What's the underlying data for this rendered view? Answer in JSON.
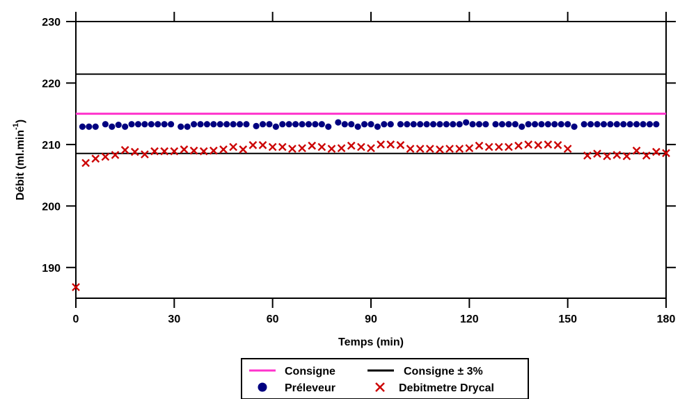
{
  "chart_data": {
    "type": "scatter",
    "xlabel": "Temps (min)",
    "ylabel_main": "Débit (ml.min",
    "ylabel_sup": "-1",
    "ylabel_end": ")",
    "xlim": [
      0,
      180
    ],
    "ylim": [
      185,
      230
    ],
    "xticks": [
      0,
      30,
      60,
      90,
      120,
      150,
      180
    ],
    "yticks": [
      190,
      200,
      210,
      220,
      230
    ],
    "reference_lines": [
      {
        "name": "Consigne",
        "y": 215,
        "color": "#ff33cc"
      },
      {
        "name": "Consigne ± 3%",
        "y_upper": 221.45,
        "y_lower": 208.55,
        "color": "#000000"
      }
    ],
    "series": [
      {
        "name": "Préleveur",
        "marker": "circle",
        "color": "#000080",
        "x": [
          2,
          4,
          6,
          9,
          11,
          13,
          15,
          17,
          19,
          21,
          23,
          25,
          27,
          29,
          32,
          34,
          36,
          38,
          40,
          42,
          44,
          46,
          48,
          50,
          52,
          55,
          57,
          59,
          61,
          63,
          65,
          67,
          69,
          71,
          73,
          75,
          77,
          80,
          82,
          84,
          86,
          88,
          90,
          92,
          94,
          96,
          99,
          101,
          103,
          105,
          107,
          109,
          111,
          113,
          115,
          117,
          119,
          121,
          123,
          125,
          128,
          130,
          132,
          134,
          136,
          138,
          140,
          142,
          144,
          146,
          148,
          150,
          152,
          155,
          157,
          159,
          161,
          163,
          165,
          167,
          169,
          171,
          173,
          175,
          177
        ],
        "y": [
          212.9,
          212.9,
          212.9,
          213.3,
          212.9,
          213.2,
          212.9,
          213.3,
          213.3,
          213.3,
          213.3,
          213.3,
          213.3,
          213.3,
          212.9,
          212.9,
          213.3,
          213.3,
          213.3,
          213.3,
          213.3,
          213.3,
          213.3,
          213.3,
          213.3,
          213.0,
          213.3,
          213.3,
          212.9,
          213.3,
          213.3,
          213.3,
          213.3,
          213.3,
          213.3,
          213.3,
          212.9,
          213.6,
          213.3,
          213.3,
          212.9,
          213.3,
          213.3,
          212.9,
          213.3,
          213.3,
          213.3,
          213.3,
          213.3,
          213.3,
          213.3,
          213.3,
          213.3,
          213.3,
          213.3,
          213.3,
          213.6,
          213.3,
          213.3,
          213.3,
          213.3,
          213.3,
          213.3,
          213.3,
          212.9,
          213.3,
          213.3,
          213.3,
          213.3,
          213.3,
          213.3,
          213.3,
          212.9,
          213.3,
          213.3,
          213.3,
          213.3,
          213.3,
          213.3,
          213.3,
          213.3,
          213.3,
          213.3,
          213.3,
          213.3
        ]
      },
      {
        "name": "Debitmetre Drycal",
        "marker": "x",
        "color": "#cc0000",
        "x": [
          0,
          3,
          6,
          9,
          12,
          15,
          18,
          21,
          24,
          27,
          30,
          33,
          36,
          39,
          42,
          45,
          48,
          51,
          54,
          57,
          60,
          63,
          66,
          69,
          72,
          75,
          78,
          81,
          84,
          87,
          90,
          93,
          96,
          99,
          102,
          105,
          108,
          111,
          114,
          117,
          120,
          123,
          126,
          129,
          132,
          135,
          138,
          141,
          144,
          147,
          150,
          156,
          159,
          162,
          165,
          168,
          171,
          174,
          177,
          180
        ],
        "y": [
          186.8,
          207.0,
          207.7,
          208.0,
          208.3,
          209.1,
          208.8,
          208.4,
          208.9,
          208.9,
          208.9,
          209.2,
          209.0,
          208.9,
          209.0,
          209.2,
          209.6,
          209.2,
          209.9,
          209.9,
          209.6,
          209.6,
          209.3,
          209.4,
          209.8,
          209.6,
          209.3,
          209.4,
          209.8,
          209.6,
          209.4,
          210.0,
          210.0,
          209.9,
          209.3,
          209.3,
          209.3,
          209.2,
          209.3,
          209.3,
          209.4,
          209.8,
          209.6,
          209.6,
          209.6,
          209.8,
          210.0,
          209.9,
          210.0,
          209.9,
          209.3,
          208.2,
          208.5,
          208.1,
          208.3,
          208.1,
          209.0,
          208.2,
          208.8,
          208.6
        ]
      }
    ],
    "legend": {
      "position": "bottom-center",
      "entries": [
        {
          "label": "Consigne",
          "symbol": "line",
          "color": "#ff33cc"
        },
        {
          "label": "Consigne ± 3%",
          "symbol": "line",
          "color": "#000000"
        },
        {
          "label": "Préleveur",
          "symbol": "circle",
          "color": "#000080"
        },
        {
          "label": "Debitmetre Drycal",
          "symbol": "x",
          "color": "#cc0000"
        }
      ]
    }
  }
}
